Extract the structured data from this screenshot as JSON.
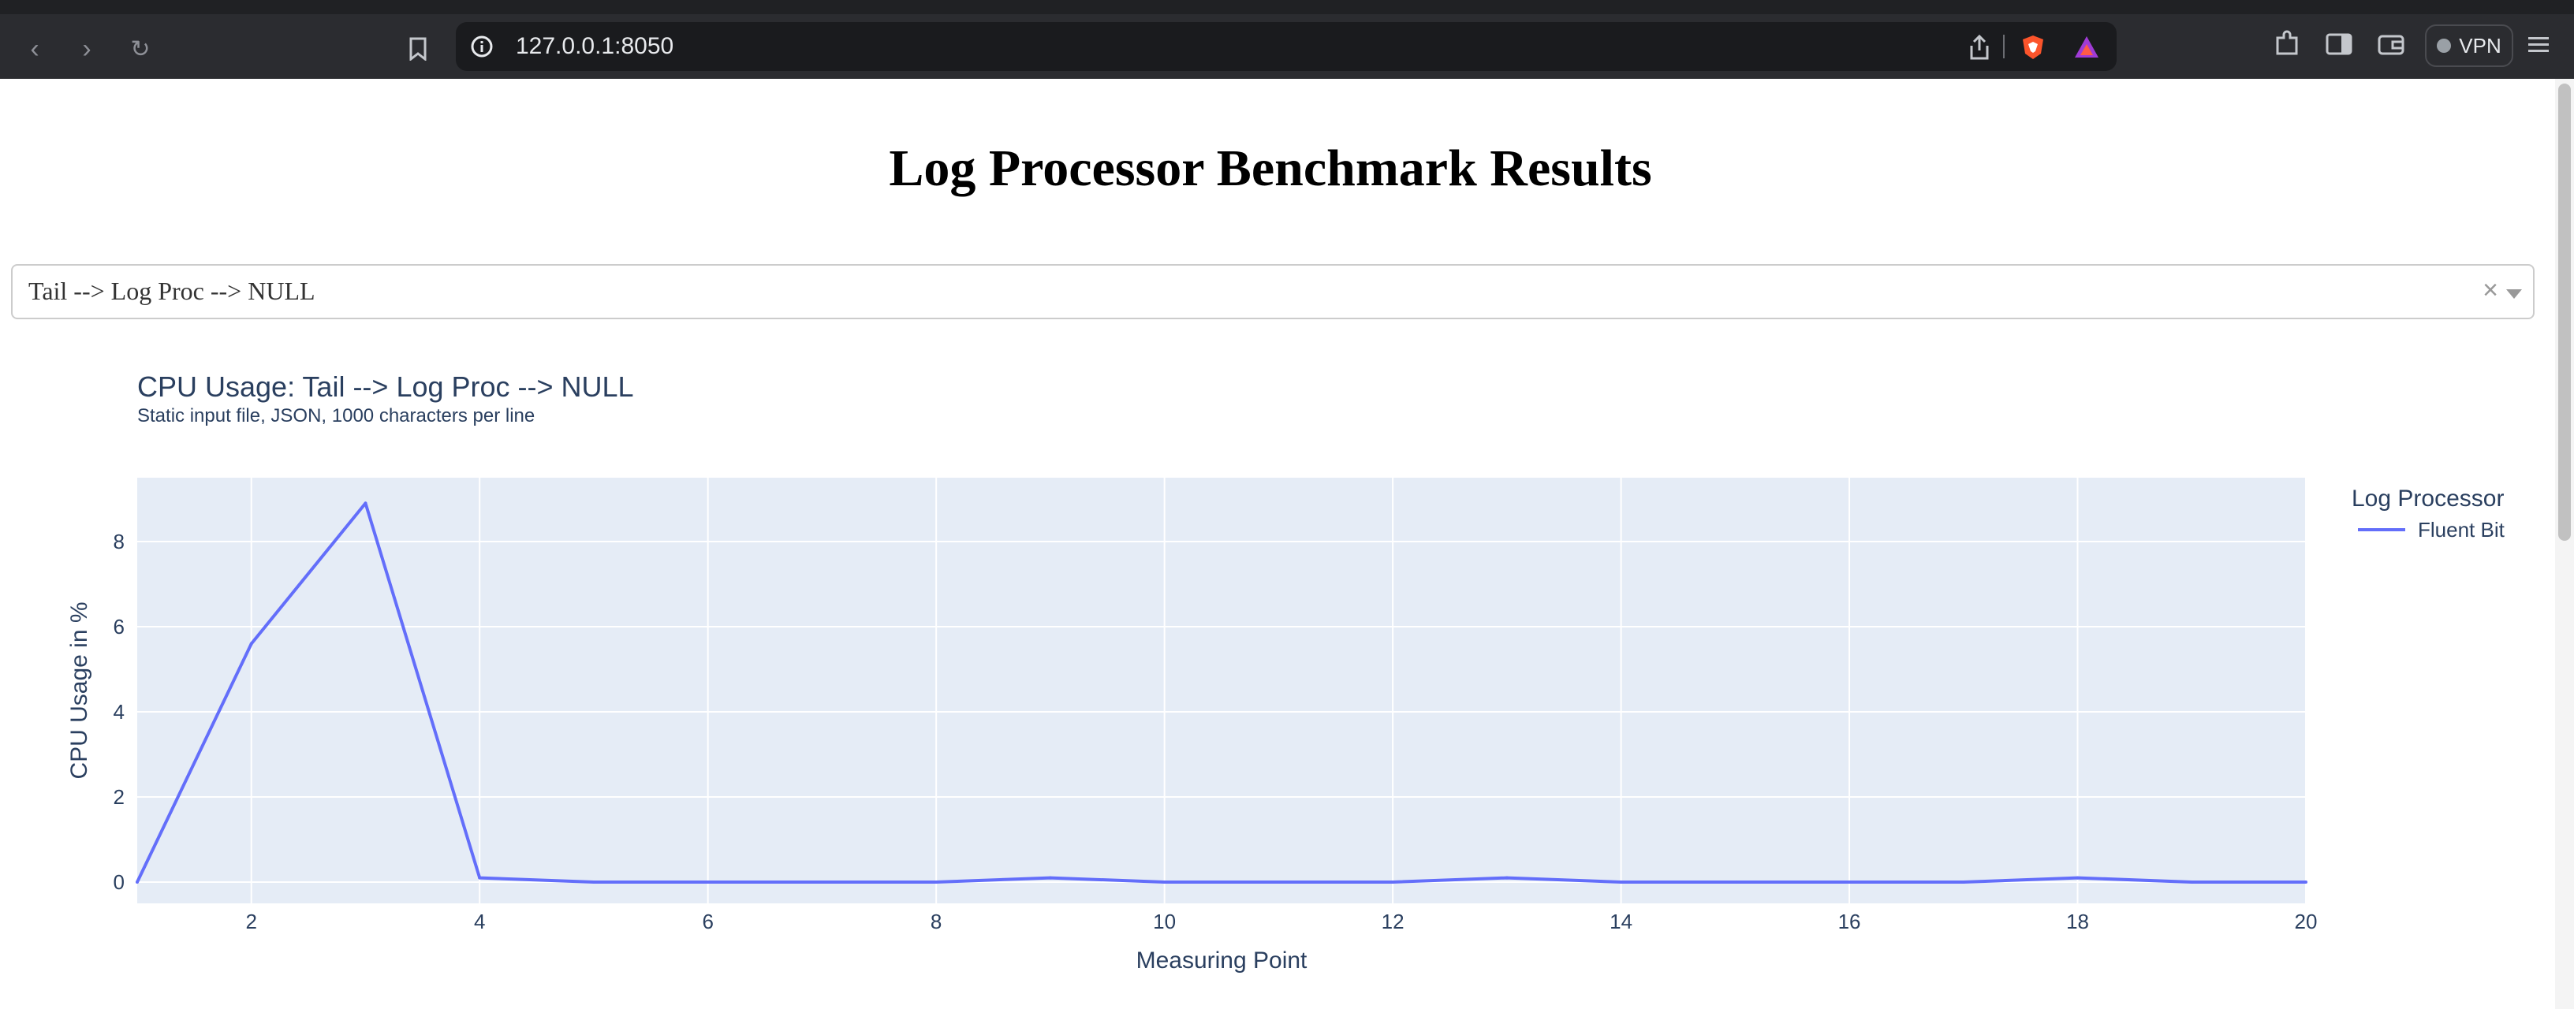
{
  "browser": {
    "url": "127.0.0.1:8050",
    "vpn_label": "VPN",
    "icons": [
      "back-icon",
      "forward-icon",
      "reload-icon",
      "bookmark-icon",
      "site-info-icon",
      "share-icon",
      "brave-shield-icon",
      "brave-rewards-icon",
      "extensions-icon",
      "sidebar-icon",
      "wallet-icon",
      "menu-icon"
    ]
  },
  "page": {
    "title": "Log Processor Benchmark Results",
    "dropdown": {
      "selected": "Tail --> Log Proc --> NULL",
      "clear_label": "×"
    }
  },
  "chart": {
    "title": "CPU Usage: Tail --> Log Proc --> NULL",
    "subtitle": "Static input file, JSON, 1000 characters per line",
    "legend_title": "Log Processor",
    "legend_item": "Fluent Bit"
  },
  "chart_data": {
    "type": "line",
    "title": "CPU Usage: Tail --> Log Proc --> NULL",
    "subtitle": "Static input file, JSON, 1000 characters per line",
    "xlabel": "Measuring Point",
    "ylabel": "CPU Usage in %",
    "xlim": [
      1,
      20
    ],
    "ylim": [
      -0.5,
      9.5
    ],
    "xticks": [
      2,
      4,
      6,
      8,
      10,
      12,
      14,
      16,
      18,
      20
    ],
    "yticks": [
      0,
      2,
      4,
      6,
      8
    ],
    "grid": true,
    "legend_title": "Log Processor",
    "legend_position": "top-right",
    "series": [
      {
        "name": "Fluent Bit",
        "color": "#636efa",
        "x": [
          1,
          2,
          3,
          4,
          5,
          6,
          7,
          8,
          9,
          10,
          11,
          12,
          13,
          14,
          15,
          16,
          17,
          18,
          19,
          20
        ],
        "y": [
          0,
          5.6,
          8.9,
          0.1,
          0,
          0,
          0,
          0,
          0.1,
          0,
          0,
          0,
          0.1,
          0,
          0,
          0,
          0,
          0.1,
          0,
          0
        ]
      }
    ]
  }
}
